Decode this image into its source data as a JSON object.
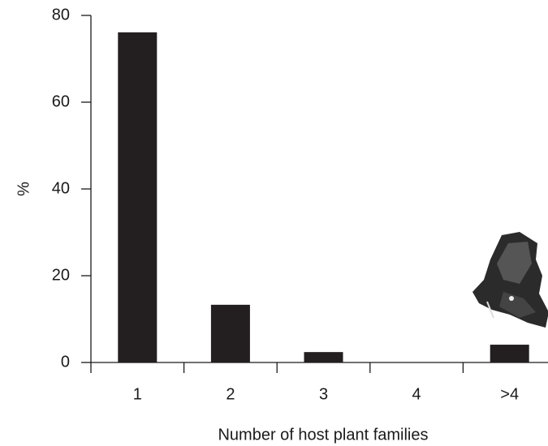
{
  "chart_data": {
    "type": "bar",
    "x_label": "Number of host plant families",
    "y_label": "%",
    "categories": [
      "1",
      "2",
      "3",
      "4",
      ">4"
    ],
    "values": [
      76.1,
      13.3,
      2.4,
      0,
      4.1
    ],
    "color": "#231f20",
    "ylim": [
      0,
      80
    ],
    "yticks": [
      0,
      20,
      40,
      60,
      80
    ],
    "grid": false
  }
}
